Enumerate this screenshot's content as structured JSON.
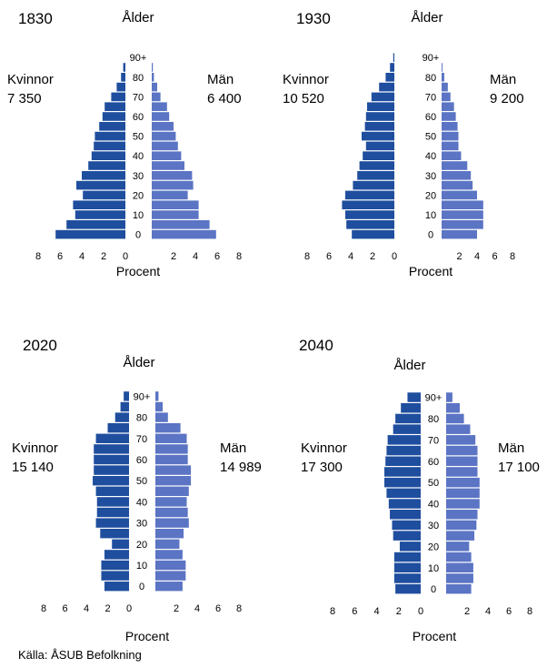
{
  "source": "Källa: ÅSUB Befolkning",
  "colors": {
    "women": "#1f4e9e",
    "men": "#5b74c4",
    "text": "#000000"
  },
  "chart_data": [
    {
      "type": "bar",
      "year": "1830",
      "age_label": "Ålder",
      "xlabel": "Procent",
      "women_label": "Kvinnor",
      "women_total": "7 350",
      "men_label": "Män",
      "men_total": "6 400",
      "age_ticks": [
        "0",
        "10",
        "20",
        "30",
        "40",
        "50",
        "60",
        "70",
        "80",
        "90+"
      ],
      "x_ticks": [
        "8",
        "6",
        "4",
        "2",
        "0",
        "2",
        "4",
        "6",
        "8"
      ],
      "xlim": [
        0,
        8
      ],
      "age_groups": 19,
      "women_pct": [
        6.4,
        5.4,
        4.6,
        4.8,
        3.9,
        4.5,
        4.0,
        3.4,
        3.1,
        2.9,
        2.8,
        2.4,
        2.1,
        1.9,
        1.3,
        0.8,
        0.4,
        0.2,
        0
      ],
      "men_pct": [
        5.9,
        5.3,
        4.3,
        4.3,
        3.3,
        3.8,
        3.7,
        3.0,
        2.7,
        2.4,
        2.2,
        2.0,
        1.6,
        1.4,
        0.8,
        0.5,
        0.2,
        0.1,
        0
      ]
    },
    {
      "type": "bar",
      "year": "1930",
      "age_label": "Ålder",
      "xlabel": "Procent",
      "women_label": "Kvinnor",
      "women_total": "10 520",
      "men_label": "Män",
      "men_total": "9 200",
      "age_ticks": [
        "0",
        "10",
        "20",
        "30",
        "40",
        "50",
        "60",
        "70",
        "80",
        "90+"
      ],
      "x_ticks": [
        "8",
        "6",
        "4",
        "2",
        "0",
        "2",
        "4",
        "6",
        "8"
      ],
      "xlim": [
        0,
        8
      ],
      "age_groups": 19,
      "women_pct": [
        3.9,
        4.4,
        4.5,
        4.8,
        4.5,
        3.8,
        3.4,
        3.2,
        2.9,
        2.6,
        3.0,
        2.7,
        2.6,
        2.5,
        2.1,
        1.4,
        0.8,
        0.4,
        0.1
      ],
      "men_pct": [
        4.0,
        4.7,
        4.7,
        4.7,
        4.0,
        3.5,
        3.3,
        2.9,
        2.2,
        1.9,
        1.9,
        1.8,
        1.6,
        1.4,
        1.0,
        0.7,
        0.3,
        0.1,
        0
      ]
    },
    {
      "type": "bar",
      "year": "2020",
      "age_label": "Ålder",
      "xlabel": "Procent",
      "women_label": "Kvinnor",
      "women_total": "15 140",
      "men_label": "Män",
      "men_total": "14 989",
      "age_ticks": [
        "0",
        "10",
        "20",
        "30",
        "40",
        "50",
        "60",
        "70",
        "80",
        "90+"
      ],
      "x_ticks": [
        "8",
        "6",
        "4",
        "2",
        "0",
        "2",
        "4",
        "6",
        "8"
      ],
      "xlim": [
        0,
        8
      ],
      "age_groups": 19,
      "women_pct": [
        2.3,
        2.6,
        2.6,
        2.3,
        1.6,
        2.7,
        3.1,
        3.0,
        3.0,
        3.1,
        3.4,
        3.3,
        3.3,
        3.3,
        3.1,
        2.0,
        1.3,
        0.8,
        0.5
      ],
      "men_pct": [
        2.6,
        2.9,
        2.9,
        2.6,
        2.3,
        2.7,
        3.2,
        3.1,
        3.0,
        3.2,
        3.4,
        3.4,
        3.1,
        3.1,
        3.0,
        2.4,
        1.2,
        0.7,
        0.3
      ]
    },
    {
      "type": "bar",
      "year": "2040",
      "age_label": "Ålder",
      "xlabel": "Procent",
      "women_label": "Kvinnor",
      "women_total": "17 300",
      "men_label": "Män",
      "men_total": "17 100",
      "age_ticks": [
        "0",
        "10",
        "20",
        "30",
        "40",
        "50",
        "60",
        "70",
        "80",
        "90+"
      ],
      "x_ticks": [
        "8",
        "6",
        "4",
        "2",
        "0",
        "2",
        "4",
        "6",
        "8"
      ],
      "xlim": [
        0,
        8
      ],
      "age_groups": 19,
      "women_pct": [
        2.3,
        2.4,
        2.4,
        2.4,
        1.9,
        2.5,
        2.6,
        2.8,
        2.9,
        3.1,
        3.3,
        3.3,
        3.2,
        3.1,
        3.0,
        2.5,
        2.3,
        1.8,
        1.2
      ],
      "men_pct": [
        2.4,
        2.6,
        2.6,
        2.4,
        2.2,
        2.7,
        2.9,
        3.0,
        3.2,
        3.2,
        3.2,
        3.0,
        3.0,
        3.0,
        2.8,
        2.3,
        1.7,
        1.3,
        0.6
      ]
    }
  ]
}
